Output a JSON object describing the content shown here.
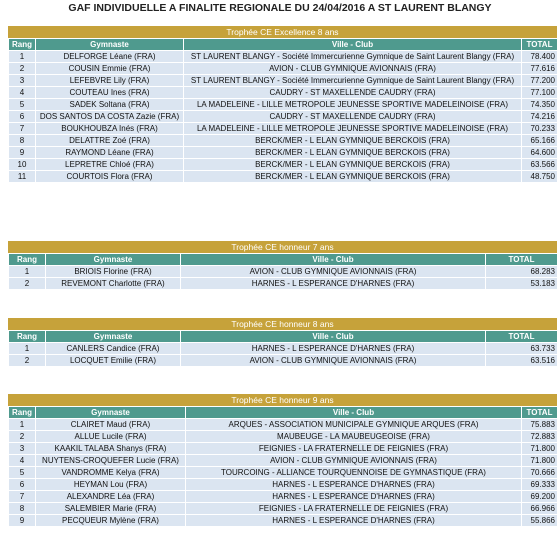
{
  "title": "GAF INDIVIDUELLE A FINALITE REGIONALE DU 24/04/2016 A ST LAURENT BLANGY",
  "sections": [
    {
      "caption": "Trophée CE Excellence 8 ans",
      "headers": [
        "Rang",
        "Gymnaste",
        "Ville - Club",
        "TOTAL"
      ],
      "rows": [
        [
          "1",
          "DELFORGE Léane (FRA)",
          "ST LAURENT BLANGY - Société Immercurienne Gymnique de Saint Laurent Blangy (FRA)",
          "78.400"
        ],
        [
          "2",
          "COUSIN Emmie (FRA)",
          "AVION - CLUB GYMNIQUE AVIONNAIS (FRA)",
          "77.616"
        ],
        [
          "3",
          "LEFEBVRE Lily (FRA)",
          "ST LAURENT BLANGY - Société Immercurienne Gymnique de Saint Laurent Blangy (FRA)",
          "77.200"
        ],
        [
          "4",
          "COUTEAU Ines (FRA)",
          "CAUDRY - ST MAXELLENDE CAUDRY (FRA)",
          "77.100"
        ],
        [
          "5",
          "SADEK Soltana (FRA)",
          "LA MADELEINE - LILLE METROPOLE JEUNESSE SPORTIVE MADELEINOISE (FRA)",
          "74.350"
        ],
        [
          "6",
          "DOS SANTOS DA COSTA Zazie (FRA)",
          "CAUDRY - ST MAXELLENDE CAUDRY (FRA)",
          "74.216"
        ],
        [
          "7",
          "BOUKHOUBZA Inés (FRA)",
          "LA MADELEINE - LILLE METROPOLE JEUNESSE SPORTIVE MADELEINOISE (FRA)",
          "70.233"
        ],
        [
          "8",
          "DELATTRE Zoé (FRA)",
          "BERCK/MER - L ELAN GYMNIQUE BERCKOIS (FRA)",
          "65.166"
        ],
        [
          "9",
          "RAYMOND Léane (FRA)",
          "BERCK/MER - L ELAN GYMNIQUE BERCKOIS (FRA)",
          "64.600"
        ],
        [
          "10",
          "LEPRETRE Chloé (FRA)",
          "BERCK/MER - L ELAN GYMNIQUE BERCKOIS (FRA)",
          "63.566"
        ],
        [
          "11",
          "COURTOIS Flora (FRA)",
          "BERCK/MER - L ELAN GYMNIQUE BERCKOIS (FRA)",
          "48.750"
        ]
      ]
    },
    {
      "caption": "Trophée CE honneur 7 ans",
      "headers": [
        "Rang",
        "Gymnaste",
        "Ville - Club",
        "TOTAL"
      ],
      "rows": [
        [
          "1",
          "BRIOIS Florine (FRA)",
          "AVION - CLUB GYMNIQUE AVIONNAIS (FRA)",
          "68.283"
        ],
        [
          "2",
          "REVEMONT Charlotte (FRA)",
          "HARNES - L ESPERANCE D'HARNES (FRA)",
          "53.183"
        ]
      ]
    },
    {
      "caption": "Trophée CE honneur 8 ans",
      "headers": [
        "Rang",
        "Gymnaste",
        "Ville - Club",
        "TOTAL"
      ],
      "rows": [
        [
          "1",
          "CANLERS Candice (FRA)",
          "HARNES - L ESPERANCE D'HARNES (FRA)",
          "63.733"
        ],
        [
          "2",
          "LOCQUET Emilie (FRA)",
          "AVION - CLUB GYMNIQUE AVIONNAIS (FRA)",
          "63.516"
        ]
      ]
    },
    {
      "caption": "Trophée CE honneur 9 ans",
      "headers": [
        "Rang",
        "Gymnaste",
        "Ville - Club",
        "TOTAL"
      ],
      "rows": [
        [
          "1",
          "CLAIRET Maud (FRA)",
          "ARQUES - ASSOCIATION MUNICIPALE GYMNIQUE ARQUES (FRA)",
          "75.883"
        ],
        [
          "2",
          "ALLUE Lucile (FRA)",
          "MAUBEUGE - LA MAUBEUGEOISE (FRA)",
          "72.883"
        ],
        [
          "3",
          "KAAKIL TALABA Shanys (FRA)",
          "FEIGNIES - LA FRATERNELLE DE FEIGNIES (FRA)",
          "71.800"
        ],
        [
          "4",
          "NUYTENS-CROQUEFER Lucie (FRA)",
          "AVION - CLUB GYMNIQUE AVIONNAIS (FRA)",
          "71.800"
        ],
        [
          "5",
          "VANDROMME Kelya (FRA)",
          "TOURCOING - ALLIANCE TOURQUENNOISE DE GYMNASTIQUE (FRA)",
          "70.666"
        ],
        [
          "6",
          "HEYMAN Lou (FRA)",
          "HARNES - L ESPERANCE D'HARNES (FRA)",
          "69.333"
        ],
        [
          "7",
          "ALEXANDRE Léa (FRA)",
          "HARNES - L ESPERANCE D'HARNES (FRA)",
          "69.200"
        ],
        [
          "8",
          "SALEMBIER Marie (FRA)",
          "FEIGNIES - LA FRATERNELLE DE FEIGNIES (FRA)",
          "66.966"
        ],
        [
          "9",
          "PECQUEUR Mylène (FRA)",
          "HARNES - L ESPERANCE D'HARNES (FRA)",
          "55.866"
        ]
      ]
    }
  ]
}
